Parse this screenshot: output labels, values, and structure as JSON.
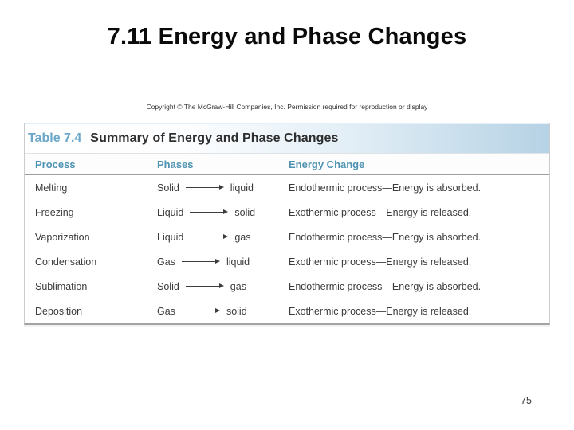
{
  "slide": {
    "title": "7.11 Energy and Phase Changes",
    "copyright": "Copyright © The McGraw-Hill Companies, Inc. Permission required for reproduction or display",
    "page_number": "75"
  },
  "table": {
    "label": "Table 7.4",
    "caption": "Summary of Energy and Phase Changes",
    "columns": [
      "Process",
      "Phases",
      "Energy Change"
    ],
    "rows": [
      {
        "process": "Melting",
        "phase_from": "Solid",
        "phase_to": "liquid",
        "energy_change": "Endothermic process—Energy is absorbed."
      },
      {
        "process": "Freezing",
        "phase_from": "Liquid",
        "phase_to": "solid",
        "energy_change": "Exothermic process—Energy is released."
      },
      {
        "process": "Vaporization",
        "phase_from": "Liquid",
        "phase_to": "gas",
        "energy_change": "Endothermic process—Energy is absorbed."
      },
      {
        "process": "Condensation",
        "phase_from": "Gas",
        "phase_to": "liquid",
        "energy_change": "Exothermic process—Energy is released."
      },
      {
        "process": "Sublimation",
        "phase_from": "Solid",
        "phase_to": "gas",
        "energy_change": "Endothermic process—Energy is absorbed."
      },
      {
        "process": "Deposition",
        "phase_from": "Gas",
        "phase_to": "solid",
        "energy_change": "Exothermic process—Energy is released."
      }
    ],
    "arrow_icon": "right-arrow"
  },
  "colors": {
    "table_label_blue": "#6BA7C8",
    "column_header_teal": "#4F93B2",
    "band_blue": "#B6D2E5",
    "body_text": "#3B3B3B",
    "title_black": "#0A0A0A"
  }
}
